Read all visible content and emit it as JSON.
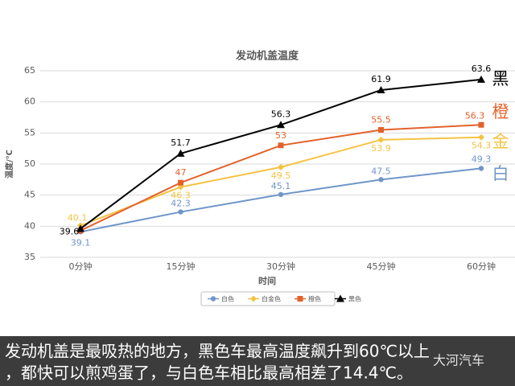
{
  "chart_data": {
    "type": "line",
    "title": "发动机盖温度",
    "x_label": "时间",
    "y_label": "温度/℃",
    "categories": [
      "0分钟",
      "15分钟",
      "30分钟",
      "45分钟",
      "60分钟"
    ],
    "series": [
      {
        "name": "白色",
        "color": "#7096c8",
        "marker": "circle",
        "values": [
          39.1,
          42.3,
          45.1,
          47.5,
          49.3
        ]
      },
      {
        "name": "白金色",
        "color": "#f5c342",
        "marker": "diamond",
        "values": [
          40.1,
          46.3,
          49.5,
          53.9,
          54.3
        ]
      },
      {
        "name": "橙色",
        "color": "#e2622b",
        "marker": "square",
        "values": [
          39.3,
          47,
          53,
          55.5,
          56.3
        ]
      },
      {
        "name": "黑色",
        "color": "#000000",
        "marker": "triangle",
        "values": [
          39.6,
          51.7,
          56.3,
          61.9,
          63.6
        ]
      }
    ],
    "ylim": [
      35,
      65
    ],
    "yticks": [
      35,
      40,
      45,
      50,
      55,
      60,
      65
    ],
    "grid": true,
    "annotations": [
      {
        "text": "黑",
        "color": "#000000",
        "y": 63.6
      },
      {
        "text": "橙",
        "color": "#e2622b",
        "y": 58.3
      },
      {
        "text": "金",
        "color": "#f5c342",
        "y": 53.5
      },
      {
        "text": "白",
        "color": "#7096c8",
        "y": 48.3
      }
    ]
  },
  "caption": [
    "发动机盖是最吸热的地方，黑色车最高温度飙升到60℃以上",
    "，都快可以煎鸡蛋了，与白色车相比最高相差了14.4℃。"
  ],
  "watermark": "大河汽车"
}
